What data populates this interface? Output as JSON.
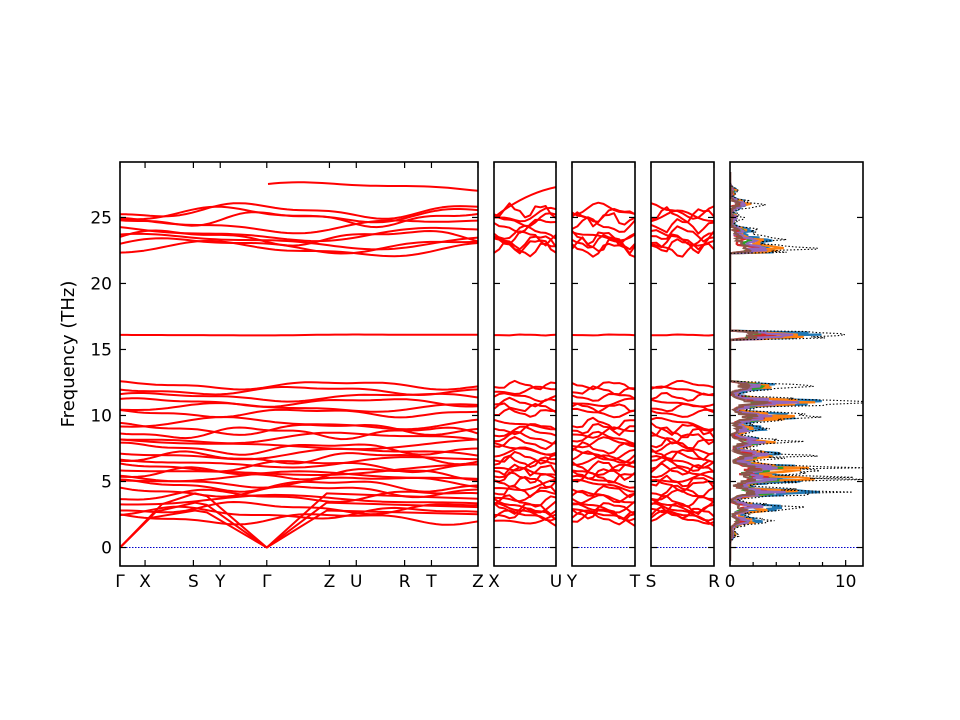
{
  "chart_data": {
    "type": "line",
    "ylabel": "Frequency (THz)",
    "ylim": [
      -1.4,
      29.2
    ],
    "y_ticks": [
      0,
      5,
      10,
      15,
      20,
      25
    ],
    "colors": {
      "bands": "#ff0000",
      "zero_line": "#0000cc",
      "total_dos": "#000000",
      "pdos": [
        "#1f77b4",
        "#ff7f0e",
        "#2ca02c",
        "#d62728",
        "#9467bd",
        "#8c564b"
      ]
    },
    "band_segments": [
      {
        "labels": [
          {
            "label": "Γ",
            "k": 0
          },
          {
            "label": "X",
            "k": 0.07
          },
          {
            "label": "S",
            "k": 0.205
          },
          {
            "label": "Y",
            "k": 0.28
          },
          {
            "label": "Γ",
            "k": 0.41
          },
          {
            "label": "Z",
            "k": 0.585
          },
          {
            "label": "U",
            "k": 0.66
          },
          {
            "label": "R",
            "k": 0.795
          },
          {
            "label": "T",
            "k": 0.87
          },
          {
            "label": "Z",
            "k": 1.0
          }
        ]
      },
      {
        "labels": [
          {
            "label": "X",
            "k": 0
          },
          {
            "label": "U",
            "k": 1
          }
        ]
      },
      {
        "labels": [
          {
            "label": "Y",
            "k": 0
          },
          {
            "label": "T",
            "k": 1
          }
        ]
      },
      {
        "labels": [
          {
            "label": "S",
            "k": 0
          },
          {
            "label": "R",
            "k": 1
          }
        ]
      }
    ],
    "band_groups_thz": {
      "acoustic_top": [
        2.8,
        3.4,
        4.1
      ],
      "low_optical": [
        2.2,
        2.6,
        3.0,
        3.5,
        3.9,
        4.3,
        4.7,
        5.0,
        5.3,
        5.6,
        5.9,
        6.2,
        6.5,
        6.8,
        7.1,
        7.5,
        7.9,
        8.3,
        8.7,
        9.0,
        9.4
      ],
      "mid_optical": [
        10.2,
        10.6,
        11.0,
        11.4,
        11.9,
        12.3
      ],
      "flat_band": [
        16.1
      ],
      "high_optical": [
        22.6,
        22.9,
        23.2,
        23.5,
        23.8,
        24.4,
        24.9,
        25.2,
        25.5
      ]
    },
    "dos": {
      "x_label_ticks": [
        0,
        10
      ],
      "xlim": [
        0,
        11.5
      ],
      "total_dos_peaks": [
        {
          "f": 1.0,
          "v": 0.8
        },
        {
          "f": 2.0,
          "v": 3.5
        },
        {
          "f": 3.0,
          "v": 7.0
        },
        {
          "f": 4.2,
          "v": 9.5
        },
        {
          "f": 5.2,
          "v": 11.0
        },
        {
          "f": 6.0,
          "v": 10.5
        },
        {
          "f": 7.0,
          "v": 7.0
        },
        {
          "f": 8.0,
          "v": 6.0
        },
        {
          "f": 9.0,
          "v": 4.0
        },
        {
          "f": 9.9,
          "v": 9.5
        },
        {
          "f": 11.0,
          "v": 11.5
        },
        {
          "f": 12.2,
          "v": 6.5
        },
        {
          "f": 16.1,
          "v": 11.5
        },
        {
          "f": 22.6,
          "v": 7.5
        },
        {
          "f": 23.3,
          "v": 4.5
        },
        {
          "f": 24.0,
          "v": 2.5
        },
        {
          "f": 25.0,
          "v": 1.2
        },
        {
          "f": 26.0,
          "v": 3.0
        },
        {
          "f": 27.0,
          "v": 0.8
        }
      ]
    }
  }
}
